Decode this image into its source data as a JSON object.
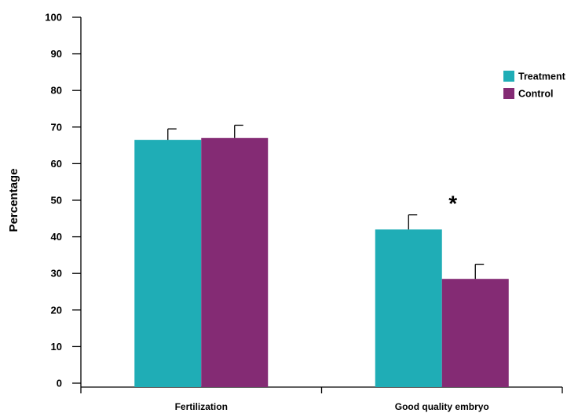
{
  "chart_data": {
    "type": "bar",
    "title": "",
    "xlabel": "",
    "ylabel": "Percentage",
    "ylim": [
      0,
      100
    ],
    "yticks": [
      0,
      10,
      20,
      30,
      40,
      50,
      60,
      70,
      80,
      90,
      100
    ],
    "categories": [
      "Fertilization",
      "Good quality embryo"
    ],
    "series": [
      {
        "name": "Treatment",
        "color": "#1fadb6",
        "values": [
          66.5,
          42
        ],
        "error": [
          3,
          4
        ]
      },
      {
        "name": "Control",
        "color": "#842b74",
        "values": [
          67,
          28.5
        ],
        "error": [
          3.5,
          4
        ]
      }
    ],
    "annotations": [
      {
        "text": "*",
        "category": "Good quality embryo"
      }
    ],
    "legend_position": "top-right",
    "grid": false
  }
}
